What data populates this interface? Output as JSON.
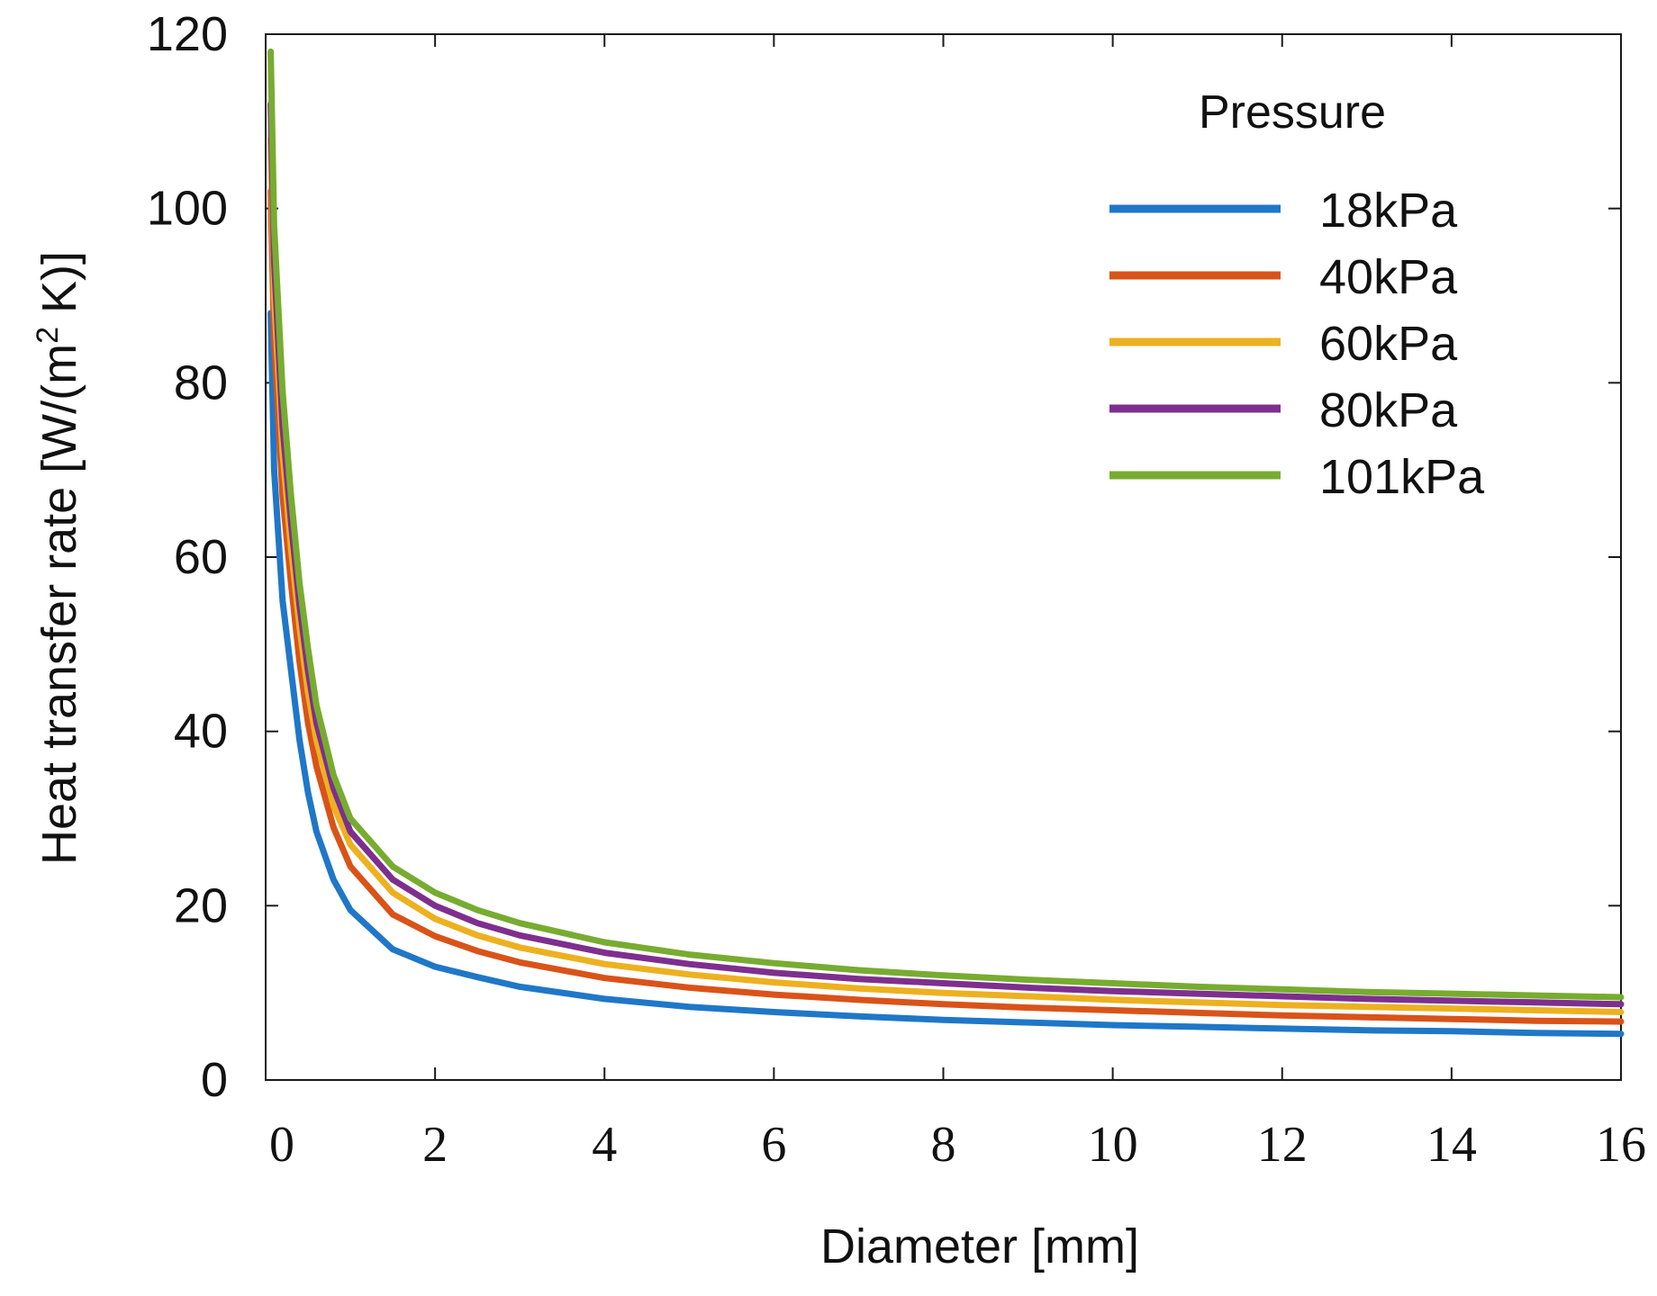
{
  "chart_data": {
    "type": "line",
    "xlabel": "Diameter [mm]",
    "ylabel_main": "Heat transfer rate [W/(m",
    "ylabel_sup": "2",
    "ylabel_end": " K)]",
    "xlim": [
      0,
      16
    ],
    "ylim": [
      0,
      120
    ],
    "xticks": [
      0,
      2,
      4,
      6,
      8,
      10,
      12,
      14,
      16
    ],
    "yticks": [
      0,
      20,
      40,
      60,
      80,
      100,
      120
    ],
    "xtick_labels": [
      "0",
      "2",
      "4",
      "6",
      "8",
      "10",
      "12",
      "14",
      "16"
    ],
    "ytick_labels": [
      "0",
      "20",
      "40",
      "60",
      "80",
      "100",
      "120"
    ],
    "legend": {
      "title": "Pressure",
      "position": "top-right"
    },
    "grid": false,
    "x": [
      0.06,
      0.1,
      0.2,
      0.3,
      0.4,
      0.5,
      0.6,
      0.8,
      1.0,
      1.5,
      2.0,
      2.5,
      3,
      4,
      5,
      6,
      7,
      8,
      9,
      10,
      11,
      12,
      13,
      14,
      15,
      16
    ],
    "series": [
      {
        "name": "18kPa",
        "color": "#1f77c8",
        "values": [
          88,
          70,
          55,
          47,
          39,
          33,
          28.5,
          23,
          19.5,
          15,
          13,
          11.8,
          10.7,
          9.3,
          8.4,
          7.8,
          7.3,
          6.9,
          6.6,
          6.3,
          6.1,
          5.9,
          5.7,
          5.6,
          5.4,
          5.3
        ]
      },
      {
        "name": "40kPa",
        "color": "#d95319",
        "values": [
          102,
          85,
          67,
          57,
          48,
          41,
          36,
          29,
          24.5,
          19,
          16.5,
          14.8,
          13.5,
          11.7,
          10.6,
          9.8,
          9.2,
          8.7,
          8.3,
          8.0,
          7.7,
          7.4,
          7.2,
          7.0,
          6.8,
          6.7
        ]
      },
      {
        "name": "60kPa",
        "color": "#edb120",
        "values": [
          108,
          90,
          72,
          61,
          52,
          44.5,
          39,
          31.5,
          27,
          21.5,
          18.5,
          16.6,
          15.2,
          13.3,
          12.1,
          11.2,
          10.5,
          10.0,
          9.6,
          9.2,
          8.9,
          8.6,
          8.4,
          8.2,
          8.0,
          7.8
        ]
      },
      {
        "name": "80kPa",
        "color": "#7e2f8e",
        "values": [
          112,
          94,
          75,
          64,
          54.5,
          47,
          41,
          33.5,
          28.5,
          23,
          20,
          18,
          16.6,
          14.6,
          13.3,
          12.3,
          11.6,
          11.1,
          10.6,
          10.2,
          9.9,
          9.6,
          9.3,
          9.1,
          8.9,
          8.7
        ]
      },
      {
        "name": "101kPa",
        "color": "#77ac30",
        "values": [
          118,
          98,
          79,
          67,
          57,
          49.5,
          43,
          35,
          30,
          24.5,
          21.5,
          19.5,
          18,
          15.8,
          14.4,
          13.4,
          12.6,
          12.0,
          11.5,
          11.1,
          10.7,
          10.4,
          10.1,
          9.9,
          9.7,
          9.5
        ]
      }
    ]
  }
}
